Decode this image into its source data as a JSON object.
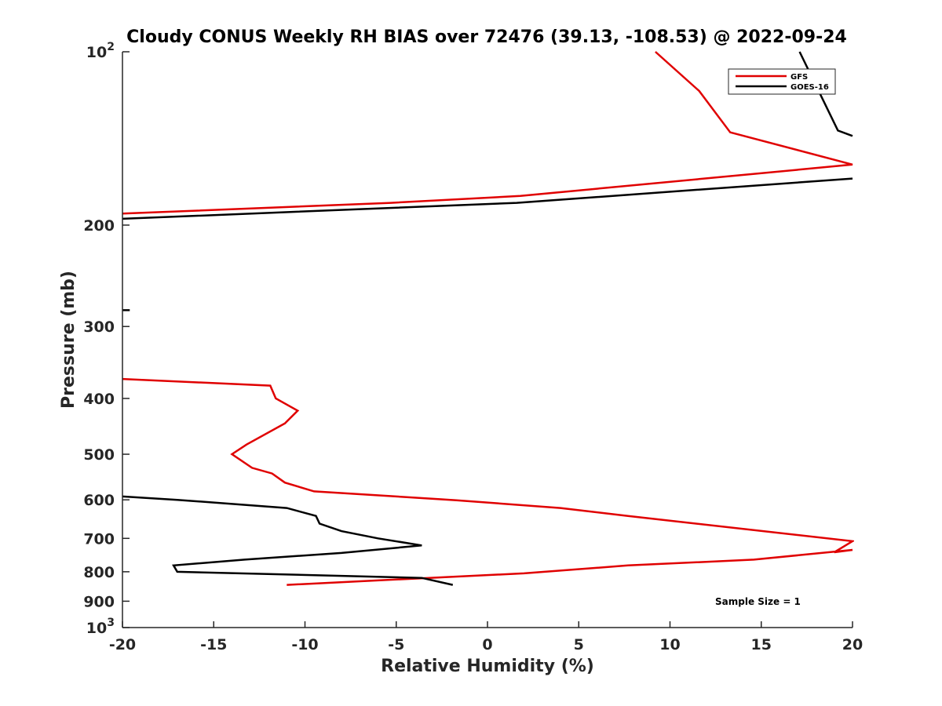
{
  "chart_data": {
    "type": "line",
    "title": "Cloudy CONUS Weekly RH BIAS over 72476 (39.13, -108.53) @ 2022-09-24",
    "xlabel": "Relative Humidity (%)",
    "ylabel": "Pressure (mb)",
    "xlim": [
      -20,
      20
    ],
    "ylim": [
      100,
      1000
    ],
    "y_scale": "log",
    "y_reversed": true,
    "grid": false,
    "legend_position": "top-right",
    "x_ticks": [
      "-20",
      "-15",
      "-10",
      "-5",
      "0",
      "5",
      "10",
      "15",
      "20"
    ],
    "y_ticks": [
      {
        "value": 100,
        "base": "10",
        "exp": "2"
      },
      {
        "value": 200,
        "label": "200"
      },
      {
        "value": 300,
        "label": "300"
      },
      {
        "value": 400,
        "label": "400"
      },
      {
        "value": 500,
        "label": "500"
      },
      {
        "value": 600,
        "label": "600"
      },
      {
        "value": 700,
        "label": "700"
      },
      {
        "value": 800,
        "label": "800"
      },
      {
        "value": 900,
        "label": "900"
      },
      {
        "value": 1000,
        "base": "10",
        "exp": "3"
      }
    ],
    "series": [
      {
        "name": "GFS",
        "color": "#e00000",
        "segments": [
          [
            [
              9.2,
              100
            ],
            [
              11.6,
              117
            ],
            [
              13.3,
              138
            ],
            [
              20,
              157
            ],
            [
              1.8,
              178
            ],
            [
              -5.3,
              183
            ],
            [
              -20,
              191
            ]
          ],
          [
            [
              -20,
              370
            ],
            [
              -11.9,
              380
            ],
            [
              -11.6,
              400
            ],
            [
              -10.4,
              420
            ],
            [
              -11.1,
              442
            ],
            [
              -13.2,
              481
            ],
            [
              -14,
              500
            ],
            [
              -12.9,
              528
            ],
            [
              -11.8,
              540
            ],
            [
              -11.1,
              560
            ],
            [
              -9.5,
              580
            ],
            [
              -1.7,
              601
            ],
            [
              4,
              620
            ],
            [
              7.7,
              640
            ],
            [
              20,
              708
            ],
            [
              19,
              740
            ],
            [
              20,
              733
            ],
            [
              14.6,
              762
            ],
            [
              7.7,
              780
            ],
            [
              2,
              805
            ],
            [
              -3.2,
              820
            ],
            [
              -11,
              843
            ]
          ]
        ]
      },
      {
        "name": "GOES-16",
        "color": "#000000",
        "segments": [
          [
            [
              17.1,
              100
            ],
            [
              19.2,
              137
            ],
            [
              20,
              140
            ]
          ],
          [
            [
              20,
              166
            ],
            [
              1.6,
              183
            ],
            [
              -20,
              195
            ]
          ],
          [
            [
              -20,
              281
            ],
            [
              -19.6,
              281
            ]
          ],
          [
            [
              -20,
              592
            ],
            [
              -17,
              600
            ],
            [
              -11,
              620
            ],
            [
              -9.4,
              640
            ],
            [
              -9.2,
              660
            ],
            [
              -8,
              680
            ],
            [
              -6,
              700
            ],
            [
              -3.6,
              720
            ],
            [
              -8,
              742
            ],
            [
              -13.3,
              762
            ],
            [
              -17.2,
              780
            ],
            [
              -17,
              800
            ],
            [
              -3.6,
              820
            ],
            [
              -1.9,
              843
            ]
          ]
        ]
      }
    ],
    "annotations": [
      "Sample Size = 1"
    ]
  }
}
